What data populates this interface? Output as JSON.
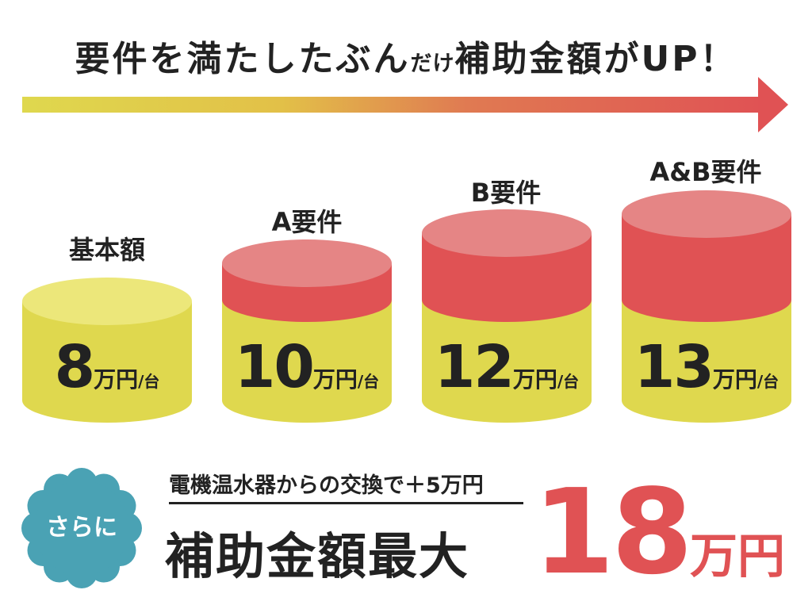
{
  "headline": {
    "part1": "要件を満たしたぶん",
    "part2": "だけ",
    "part3": "補助金額がUP！"
  },
  "colors": {
    "yellow": "#dfd84e",
    "yellow_top": "#ece77a",
    "red": "#e05254",
    "red_top": "#e58585",
    "teal": "#4aa2b4"
  },
  "tiers": [
    {
      "label": "基本額",
      "amount": "8",
      "unit": "万円",
      "per": "/台"
    },
    {
      "label": "A要件",
      "amount": "10",
      "unit": "万円",
      "per": "/台"
    },
    {
      "label": "B要件",
      "amount": "12",
      "unit": "万円",
      "per": "/台"
    },
    {
      "label": "A&B要件",
      "amount": "13",
      "unit": "万円",
      "per": "/台"
    }
  ],
  "bonus": {
    "badge": "さらに",
    "subtitle": "電機温水器からの交換で＋5万円",
    "main": "補助金額最大",
    "max_amount": "18",
    "max_unit": "万円"
  }
}
